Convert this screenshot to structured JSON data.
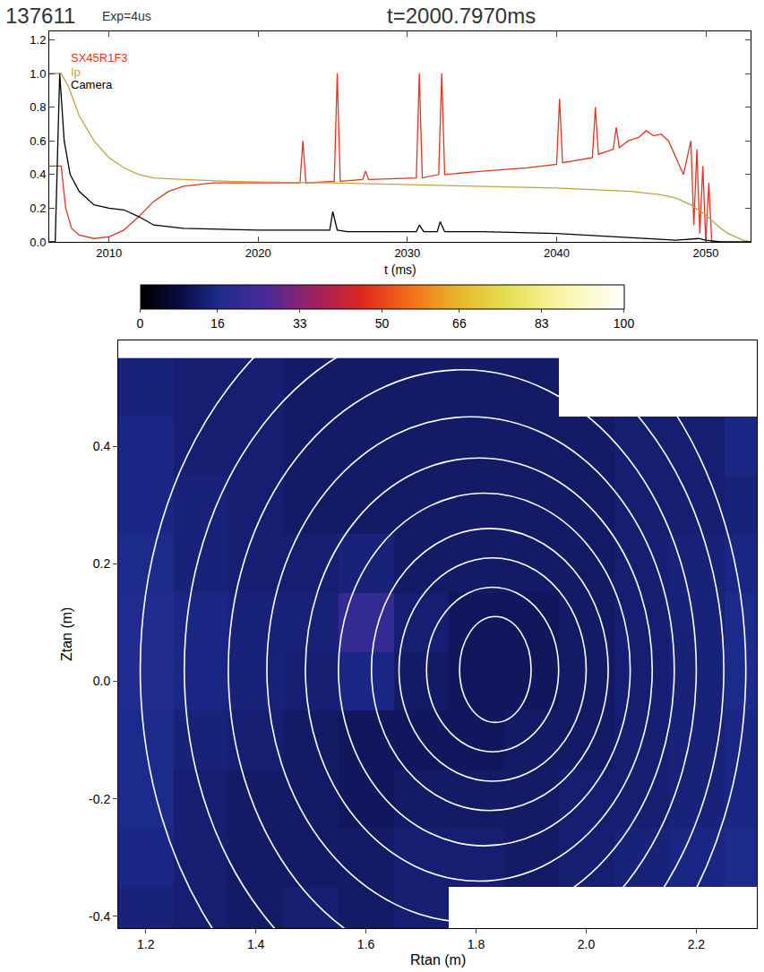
{
  "header": {
    "shot": "137611",
    "exposure": "Exp=4us",
    "time": "t=2000.7970ms"
  },
  "chart_data": [
    {
      "type": "line",
      "x_label": "t (ms)",
      "xlim": [
        2006,
        2053
      ],
      "xticks": [
        2010,
        2020,
        2030,
        2040,
        2050
      ],
      "ylim": [
        0,
        1.25
      ],
      "yticks": [
        {
          "value": 0,
          "label": "0.0"
        },
        0.2,
        0.4,
        0.6,
        0.8,
        {
          "value": 1,
          "label": "1.0"
        },
        1.2
      ],
      "legend": "top left",
      "series": [
        {
          "name": "SX45R1F3",
          "color": "#e8321e",
          "x": [
            2006,
            2006.8,
            2007.1,
            2007.5,
            2008,
            2009,
            2010,
            2011,
            2012,
            2013,
            2014,
            2015,
            2017,
            2020,
            2022.8,
            2023,
            2023.2,
            2025.1,
            2025.3,
            2025.5,
            2027,
            2027.2,
            2027.4,
            2030.6,
            2030.8,
            2031,
            2032.1,
            2032.3,
            2032.5,
            2035,
            2038,
            2040,
            2040.2,
            2040.4,
            2042.4,
            2042.6,
            2042.8,
            2043.8,
            2044,
            2044.2,
            2044.8,
            2045.5,
            2046,
            2046.5,
            2047,
            2047.5,
            2048,
            2048.5,
            2049,
            2049.2,
            2049.4,
            2049.6,
            2049.8,
            2050,
            2050.2,
            2050.4,
            2050.6
          ],
          "values": [
            0.45,
            0.45,
            0.2,
            0.08,
            0.04,
            0.02,
            0.03,
            0.07,
            0.15,
            0.24,
            0.3,
            0.33,
            0.35,
            0.35,
            0.35,
            0.6,
            0.35,
            0.36,
            1.0,
            0.36,
            0.37,
            0.42,
            0.37,
            0.38,
            1.0,
            0.38,
            0.4,
            1.0,
            0.4,
            0.42,
            0.44,
            0.46,
            0.85,
            0.47,
            0.5,
            0.8,
            0.52,
            0.55,
            0.68,
            0.56,
            0.6,
            0.62,
            0.66,
            0.63,
            0.64,
            0.6,
            0.5,
            0.4,
            0.6,
            0.1,
            0.55,
            0.05,
            0.45,
            0.0,
            0.35,
            0.0,
            0.0
          ]
        },
        {
          "name": "Ip",
          "color": "#bfa43a",
          "x": [
            2006,
            2006.8,
            2007.3,
            2008,
            2009,
            2010,
            2011,
            2012,
            2013,
            2015,
            2018,
            2020,
            2025,
            2030,
            2035,
            2040,
            2045,
            2047,
            2048,
            2049,
            2050,
            2050.5,
            2051,
            2051.5,
            2052,
            2052.5,
            2053
          ],
          "values": [
            1.0,
            1.0,
            0.92,
            0.75,
            0.6,
            0.5,
            0.44,
            0.4,
            0.38,
            0.37,
            0.36,
            0.355,
            0.35,
            0.34,
            0.33,
            0.32,
            0.3,
            0.28,
            0.26,
            0.22,
            0.16,
            0.12,
            0.08,
            0.05,
            0.03,
            0.01,
            0.0
          ]
        },
        {
          "name": "Camera",
          "color": "#000000",
          "x": [
            2006,
            2006.4,
            2006.7,
            2007,
            2007.4,
            2008,
            2009,
            2010,
            2011,
            2012,
            2013,
            2015,
            2020,
            2024.8,
            2025,
            2025.3,
            2026,
            2030.6,
            2030.8,
            2031.1,
            2032,
            2032.2,
            2032.5,
            2035,
            2040,
            2044,
            2046,
            2048,
            2049.5,
            2050,
            2051,
            2053
          ],
          "values": [
            0.0,
            0.0,
            1.0,
            0.6,
            0.4,
            0.3,
            0.22,
            0.2,
            0.19,
            0.15,
            0.1,
            0.08,
            0.07,
            0.07,
            0.18,
            0.07,
            0.06,
            0.06,
            0.1,
            0.06,
            0.06,
            0.12,
            0.06,
            0.06,
            0.05,
            0.03,
            0.02,
            0.01,
            0.02,
            0.01,
            0.0,
            0.0
          ]
        }
      ]
    },
    {
      "type": "heatmap",
      "x_label": "Rtan (m)",
      "y_label": "Ztan (m)",
      "xlim": [
        1.15,
        2.31
      ],
      "xticks": [
        1.2,
        1.4,
        1.6,
        1.8,
        {
          "value": 2.0,
          "label": "2.0"
        },
        2.2
      ],
      "ylim": [
        -0.42,
        0.58
      ],
      "yticks": [
        -0.4,
        -0.2,
        {
          "value": 0,
          "label": "0.0"
        },
        0.2,
        0.4
      ],
      "x": [
        1.2,
        1.3,
        1.4,
        1.5,
        1.6,
        1.7,
        1.8,
        1.9,
        2.0,
        2.1,
        2.2,
        2.3
      ],
      "y": [
        -0.4,
        -0.3,
        -0.2,
        -0.1,
        0.0,
        0.1,
        0.2,
        0.3,
        0.4,
        0.5
      ],
      "cells": [
        [
          14,
          13,
          12,
          13,
          12,
          13,
          null,
          null,
          null,
          null,
          null,
          null
        ],
        [
          15,
          13,
          12,
          12,
          12,
          13,
          13,
          12,
          13,
          14,
          15,
          16
        ],
        [
          16,
          13,
          12,
          12,
          11,
          12,
          12,
          12,
          13,
          13,
          14,
          15
        ],
        [
          16,
          14,
          13,
          12,
          11,
          11,
          11,
          12,
          12,
          13,
          14,
          15
        ],
        [
          17,
          15,
          14,
          13,
          15,
          12,
          11,
          11,
          12,
          13,
          14,
          16
        ],
        [
          17,
          15,
          14,
          14,
          21,
          13,
          11,
          11,
          12,
          13,
          14,
          16
        ],
        [
          16,
          14,
          13,
          13,
          14,
          12,
          12,
          12,
          12,
          13,
          14,
          15
        ],
        [
          15,
          14,
          13,
          12,
          12,
          12,
          12,
          12,
          12,
          13,
          13,
          14
        ],
        [
          15,
          13,
          13,
          12,
          12,
          12,
          12,
          12,
          12,
          13,
          13,
          15
        ],
        [
          14,
          13,
          13,
          12,
          12,
          12,
          12,
          12,
          null,
          null,
          null,
          null
        ]
      ],
      "colorbar": {
        "range": [
          0,
          100
        ],
        "ticks": [
          0,
          16,
          33,
          50,
          66,
          83,
          100
        ]
      },
      "contours": [
        [
          1.77,
          1.9,
          -0.07,
          0.11
        ],
        [
          1.71,
          1.95,
          -0.12,
          0.16
        ],
        [
          1.66,
          2.0,
          -0.17,
          0.21
        ],
        [
          1.61,
          2.04,
          -0.22,
          0.26
        ],
        [
          1.55,
          2.08,
          -0.28,
          0.32
        ],
        [
          1.49,
          2.12,
          -0.34,
          0.38
        ],
        [
          1.42,
          2.16,
          -0.41,
          0.45
        ],
        [
          1.35,
          2.2,
          -0.49,
          0.53
        ],
        [
          1.27,
          2.25,
          -0.57,
          0.61
        ],
        [
          1.19,
          2.29,
          -0.66,
          0.7
        ]
      ]
    }
  ]
}
